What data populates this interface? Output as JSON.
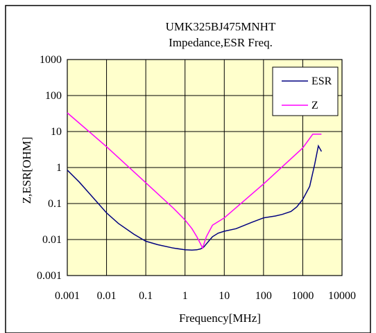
{
  "chart_data": {
    "type": "line",
    "title": "UMK325BJ475MNHT",
    "subtitle": "Impedance,ESR Freq.",
    "xlabel": "Frequency[MHz]",
    "ylabel": "Z,ESR[OHM]",
    "x_scale": "log",
    "y_scale": "log",
    "xlim": [
      0.001,
      10000
    ],
    "ylim": [
      0.001,
      1000
    ],
    "x_ticks": [
      {
        "value": 0.001,
        "label": "0.001"
      },
      {
        "value": 0.01,
        "label": "0.01"
      },
      {
        "value": 0.1,
        "label": "0.1"
      },
      {
        "value": 1,
        "label": "1"
      },
      {
        "value": 10,
        "label": "10"
      },
      {
        "value": 100,
        "label": "100"
      },
      {
        "value": 1000,
        "label": "1000"
      },
      {
        "value": 10000,
        "label": "10000"
      }
    ],
    "y_ticks": [
      {
        "value": 0.001,
        "label": "0.001"
      },
      {
        "value": 0.01,
        "label": "0.01"
      },
      {
        "value": 0.1,
        "label": "0.1"
      },
      {
        "value": 1,
        "label": "1"
      },
      {
        "value": 10,
        "label": "10"
      },
      {
        "value": 100,
        "label": "100"
      },
      {
        "value": 1000,
        "label": "1000"
      }
    ],
    "grid": true,
    "legend_position": "top-right",
    "plot_background": "#ffffcc",
    "series": [
      {
        "name": "ESR",
        "color": "#000080",
        "x": [
          0.001,
          0.002,
          0.005,
          0.01,
          0.02,
          0.05,
          0.1,
          0.2,
          0.5,
          1,
          1.5,
          2,
          2.5,
          3,
          4,
          5,
          7,
          10,
          20,
          50,
          100,
          200,
          300,
          500,
          700,
          1000,
          1500,
          2000,
          2500,
          3000
        ],
        "y": [
          0.85,
          0.4,
          0.13,
          0.055,
          0.028,
          0.014,
          0.009,
          0.0072,
          0.0058,
          0.0052,
          0.0051,
          0.0052,
          0.0055,
          0.0062,
          0.009,
          0.012,
          0.015,
          0.017,
          0.02,
          0.03,
          0.04,
          0.045,
          0.05,
          0.06,
          0.08,
          0.13,
          0.3,
          1.2,
          4,
          2.8
        ]
      },
      {
        "name": "Z",
        "color": "#ff00ff",
        "x": [
          0.001,
          0.01,
          0.1,
          0.5,
          1,
          1.5,
          2,
          2.5,
          2.8,
          3.5,
          5,
          10,
          100,
          1000,
          1800,
          2500,
          3000
        ],
        "y": [
          33,
          3.8,
          0.38,
          0.075,
          0.035,
          0.02,
          0.012,
          0.0075,
          0.0058,
          0.012,
          0.025,
          0.04,
          0.35,
          3.5,
          8.5,
          8.5,
          8.5
        ]
      }
    ]
  }
}
